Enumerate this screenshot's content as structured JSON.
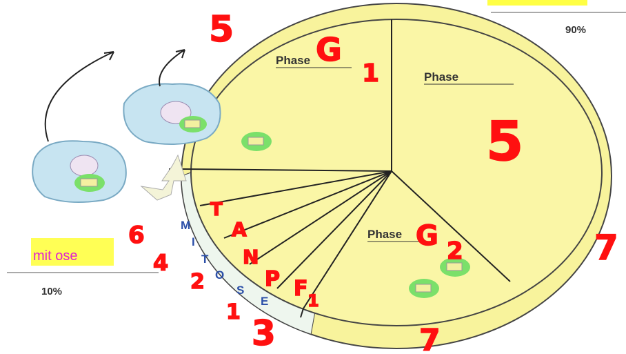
{
  "labels": {
    "phase_g1": "Phase",
    "phase_s": "Phase",
    "phase_g2": "Phase",
    "interphase_percent": "90%",
    "mitosis_label": "mit ose",
    "mitosis_percent": "10%",
    "mitosis_letters": [
      "M",
      "I",
      "T",
      "O",
      "S",
      "E"
    ]
  },
  "annotations": [
    "5",
    "G",
    "1",
    "5",
    "G",
    "2",
    "7",
    "7",
    "6",
    "4",
    "2",
    "1",
    "3",
    "T",
    "A",
    "N",
    "P",
    "F",
    "1"
  ]
}
